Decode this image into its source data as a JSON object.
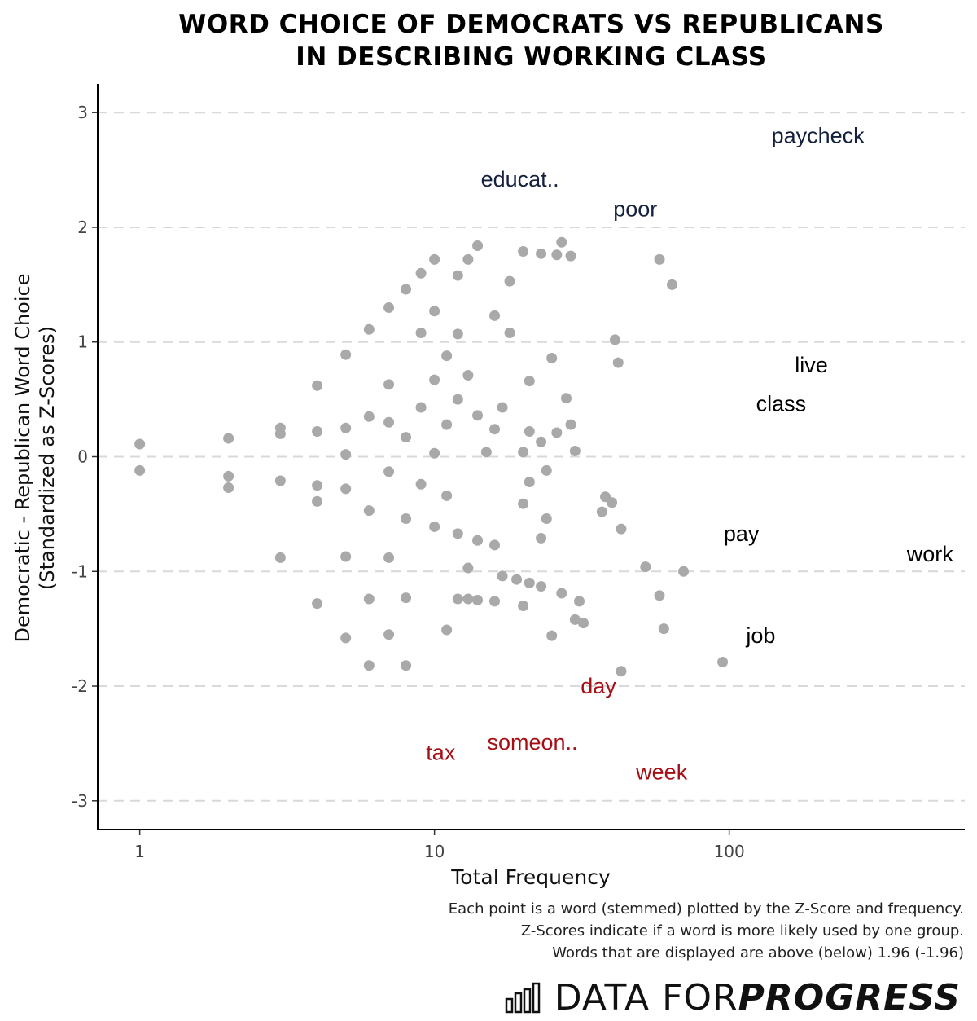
{
  "title_line1": "WORD CHOICE OF DEMOCRATS VS REPUBLICANS",
  "title_line2": "IN DESCRIBING WORKING CLASS",
  "caption_line1": "Each point is a word (stemmed) plotted by the Z-Score and frequency.",
  "caption_line2": "Z-Scores indicate if a word is more likely used by one group.",
  "caption_line3": "Words that are displayed are above (below) 1.96 (-1.96)",
  "brand": {
    "plain": "DATA FOR ",
    "bold": "PROGRESS",
    "icon": "bar-chart-icon"
  },
  "colors": {
    "point": "#a9a9a9",
    "dem": "#14213d",
    "rep": "#a50f15",
    "neutral": "#000000",
    "grid": "#d9d9d9"
  },
  "chart_data": {
    "type": "scatter",
    "xlabel": "Total Frequency",
    "ylabel_line1": "Democratic - Republican Word Choice",
    "ylabel_line2": "(Standardized as Z-Scores)",
    "x_scale": "log10",
    "xlim": [
      0.72,
      630
    ],
    "ylim": [
      -3.25,
      3.25
    ],
    "x_ticks": [
      {
        "value": 1,
        "label": "1"
      },
      {
        "value": 10,
        "label": "10"
      },
      {
        "value": 100,
        "label": "100"
      }
    ],
    "y_ticks": [
      {
        "value": 3,
        "label": "3"
      },
      {
        "value": 2,
        "label": "2"
      },
      {
        "value": 1,
        "label": "1"
      },
      {
        "value": 0,
        "label": "0"
      },
      {
        "value": -1,
        "label": "-1"
      },
      {
        "value": -2,
        "label": "-2"
      },
      {
        "value": -3,
        "label": "-3"
      }
    ],
    "grid": "horizontal dashed",
    "labeled_words": [
      {
        "word": "paycheck",
        "x": 200,
        "y": 2.8,
        "group": "dem"
      },
      {
        "word": "educat..",
        "x": 19.5,
        "y": 2.42,
        "group": "dem"
      },
      {
        "word": "poor",
        "x": 48,
        "y": 2.16,
        "group": "dem"
      },
      {
        "word": "live",
        "x": 190,
        "y": 0.8,
        "group": "neutral"
      },
      {
        "word": "class",
        "x": 150,
        "y": 0.46,
        "group": "neutral"
      },
      {
        "word": "pay",
        "x": 110,
        "y": -0.67,
        "group": "neutral"
      },
      {
        "word": "work",
        "x": 480,
        "y": -0.85,
        "group": "neutral"
      },
      {
        "word": "job",
        "x": 128,
        "y": -1.56,
        "group": "neutral"
      },
      {
        "word": "day",
        "x": 36,
        "y": -2.0,
        "group": "rep"
      },
      {
        "word": "tax",
        "x": 10.5,
        "y": -2.58,
        "group": "rep"
      },
      {
        "word": "someon..",
        "x": 21.5,
        "y": -2.49,
        "group": "rep"
      },
      {
        "word": "week",
        "x": 59,
        "y": -2.75,
        "group": "rep"
      }
    ],
    "points": [
      {
        "x": 1,
        "y": 0.11
      },
      {
        "x": 1,
        "y": -0.12
      },
      {
        "x": 2,
        "y": 0.16
      },
      {
        "x": 2,
        "y": -0.17
      },
      {
        "x": 2,
        "y": -0.27
      },
      {
        "x": 3,
        "y": 0.25
      },
      {
        "x": 3,
        "y": 0.2
      },
      {
        "x": 3,
        "y": -0.21
      },
      {
        "x": 3,
        "y": -0.88
      },
      {
        "x": 4,
        "y": 0.62
      },
      {
        "x": 4,
        "y": 0.22
      },
      {
        "x": 4,
        "y": -0.25
      },
      {
        "x": 4,
        "y": -0.39
      },
      {
        "x": 4,
        "y": -1.28
      },
      {
        "x": 5,
        "y": 0.89
      },
      {
        "x": 5,
        "y": 0.25
      },
      {
        "x": 5,
        "y": 0.02
      },
      {
        "x": 5,
        "y": -0.28
      },
      {
        "x": 5,
        "y": -0.87
      },
      {
        "x": 5,
        "y": -1.58
      },
      {
        "x": 6,
        "y": 1.11
      },
      {
        "x": 6,
        "y": 0.35
      },
      {
        "x": 6,
        "y": -0.47
      },
      {
        "x": 6,
        "y": -1.24
      },
      {
        "x": 6,
        "y": -1.82
      },
      {
        "x": 7,
        "y": 1.3
      },
      {
        "x": 7,
        "y": 0.63
      },
      {
        "x": 7,
        "y": 0.3
      },
      {
        "x": 7,
        "y": -0.13
      },
      {
        "x": 7,
        "y": -0.88
      },
      {
        "x": 7,
        "y": -1.55
      },
      {
        "x": 8,
        "y": 1.46
      },
      {
        "x": 8,
        "y": 0.17
      },
      {
        "x": 8,
        "y": -0.54
      },
      {
        "x": 8,
        "y": -1.23
      },
      {
        "x": 8,
        "y": -1.82
      },
      {
        "x": 9,
        "y": 1.6
      },
      {
        "x": 9,
        "y": 1.08
      },
      {
        "x": 9,
        "y": 0.43
      },
      {
        "x": 9,
        "y": -0.24
      },
      {
        "x": 10,
        "y": 1.72
      },
      {
        "x": 10,
        "y": 1.27
      },
      {
        "x": 10,
        "y": 0.67
      },
      {
        "x": 10,
        "y": 0.03
      },
      {
        "x": 10,
        "y": -0.61
      },
      {
        "x": 11,
        "y": 0.88
      },
      {
        "x": 11,
        "y": 0.28
      },
      {
        "x": 11,
        "y": -0.34
      },
      {
        "x": 11,
        "y": -1.51
      },
      {
        "x": 12,
        "y": 1.58
      },
      {
        "x": 12,
        "y": 1.07
      },
      {
        "x": 12,
        "y": 0.5
      },
      {
        "x": 12,
        "y": -0.67
      },
      {
        "x": 12,
        "y": -1.24
      },
      {
        "x": 13,
        "y": 1.72
      },
      {
        "x": 13,
        "y": 0.71
      },
      {
        "x": 13,
        "y": -0.97
      },
      {
        "x": 13,
        "y": -1.24
      },
      {
        "x": 14,
        "y": 1.84
      },
      {
        "x": 14,
        "y": 0.36
      },
      {
        "x": 14,
        "y": -0.73
      },
      {
        "x": 14,
        "y": -1.25
      },
      {
        "x": 15,
        "y": 0.04
      },
      {
        "x": 16,
        "y": 1.23
      },
      {
        "x": 16,
        "y": 0.24
      },
      {
        "x": 16,
        "y": -0.77
      },
      {
        "x": 16,
        "y": -1.26
      },
      {
        "x": 17,
        "y": 0.43
      },
      {
        "x": 17,
        "y": -1.04
      },
      {
        "x": 18,
        "y": 1.53
      },
      {
        "x": 18,
        "y": 1.08
      },
      {
        "x": 19,
        "y": -1.07
      },
      {
        "x": 20,
        "y": 1.79
      },
      {
        "x": 20,
        "y": 0.04
      },
      {
        "x": 20,
        "y": -0.41
      },
      {
        "x": 20,
        "y": -1.3
      },
      {
        "x": 21,
        "y": 0.66
      },
      {
        "x": 21,
        "y": 0.22
      },
      {
        "x": 21,
        "y": -0.22
      },
      {
        "x": 21,
        "y": -1.1
      },
      {
        "x": 23,
        "y": 1.77
      },
      {
        "x": 23,
        "y": 0.13
      },
      {
        "x": 23,
        "y": -0.71
      },
      {
        "x": 23,
        "y": -1.13
      },
      {
        "x": 24,
        "y": -0.12
      },
      {
        "x": 24,
        "y": -0.54
      },
      {
        "x": 25,
        "y": 0.86
      },
      {
        "x": 25,
        "y": -1.56
      },
      {
        "x": 26,
        "y": 1.76
      },
      {
        "x": 26,
        "y": 0.21
      },
      {
        "x": 27,
        "y": 1.87
      },
      {
        "x": 27,
        "y": -1.19
      },
      {
        "x": 28,
        "y": 0.51
      },
      {
        "x": 29,
        "y": 1.75
      },
      {
        "x": 29,
        "y": 0.28
      },
      {
        "x": 30,
        "y": 0.05
      },
      {
        "x": 30,
        "y": -1.42
      },
      {
        "x": 31,
        "y": -1.26
      },
      {
        "x": 32,
        "y": -1.45
      },
      {
        "x": 37,
        "y": -0.48
      },
      {
        "x": 38,
        "y": -0.35
      },
      {
        "x": 40,
        "y": -0.4
      },
      {
        "x": 41,
        "y": 1.02
      },
      {
        "x": 42,
        "y": 0.82
      },
      {
        "x": 43,
        "y": -0.63
      },
      {
        "x": 43,
        "y": -1.87
      },
      {
        "x": 52,
        "y": -0.96
      },
      {
        "x": 58,
        "y": 1.72
      },
      {
        "x": 58,
        "y": -1.21
      },
      {
        "x": 60,
        "y": -1.5
      },
      {
        "x": 64,
        "y": 1.5
      },
      {
        "x": 70,
        "y": -1.0
      },
      {
        "x": 95,
        "y": -1.79
      }
    ]
  }
}
